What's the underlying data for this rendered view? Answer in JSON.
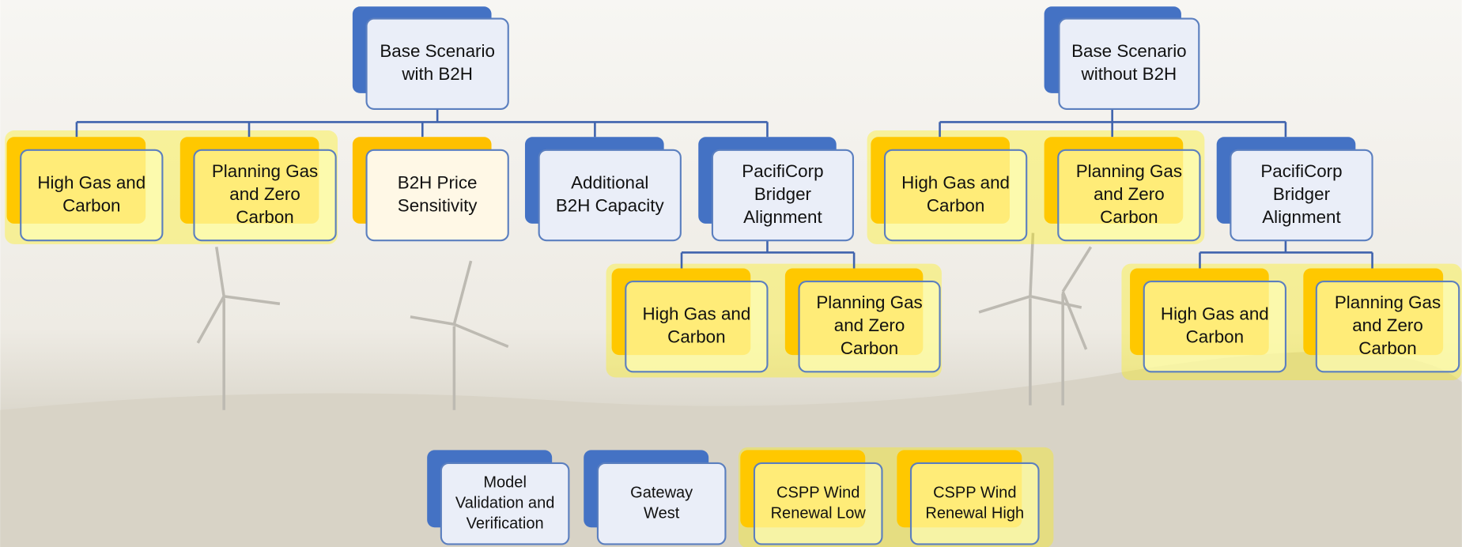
{
  "nodes": [
    {
      "label": [
        "Base Scenario",
        "with B2H"
      ]
    },
    {
      "label": [
        "Base Scenario",
        "without B2H"
      ]
    },
    {
      "label": [
        "High Gas and",
        "Carbon"
      ]
    },
    {
      "label": [
        "Planning Gas",
        "and Zero",
        "Carbon"
      ]
    },
    {
      "label": [
        "B2H Price",
        "Sensitivity"
      ]
    },
    {
      "label": [
        "Additional",
        "B2H Capacity"
      ]
    },
    {
      "label": [
        "PacifiCorp",
        "Bridger",
        "Alignment"
      ]
    },
    {
      "label": [
        "High Gas and",
        "Carbon"
      ]
    },
    {
      "label": [
        "Planning Gas",
        "and Zero",
        "Carbon"
      ]
    },
    {
      "label": [
        "PacifiCorp",
        "Bridger",
        "Alignment"
      ]
    },
    {
      "label": [
        "High Gas and",
        "Carbon"
      ]
    },
    {
      "label": [
        "Planning Gas",
        "and Zero",
        "Carbon"
      ]
    },
    {
      "label": [
        "High Gas and",
        "Carbon"
      ]
    },
    {
      "label": [
        "Planning Gas",
        "and Zero",
        "Carbon"
      ]
    },
    {
      "label": [
        "Model",
        "Validation and",
        "Verification"
      ]
    },
    {
      "label": [
        "Gateway",
        "West"
      ]
    },
    {
      "label": [
        "CSPP Wind",
        "Renewal Low"
      ]
    },
    {
      "label": [
        "CSPP Wind",
        "Renewal High"
      ]
    }
  ]
}
